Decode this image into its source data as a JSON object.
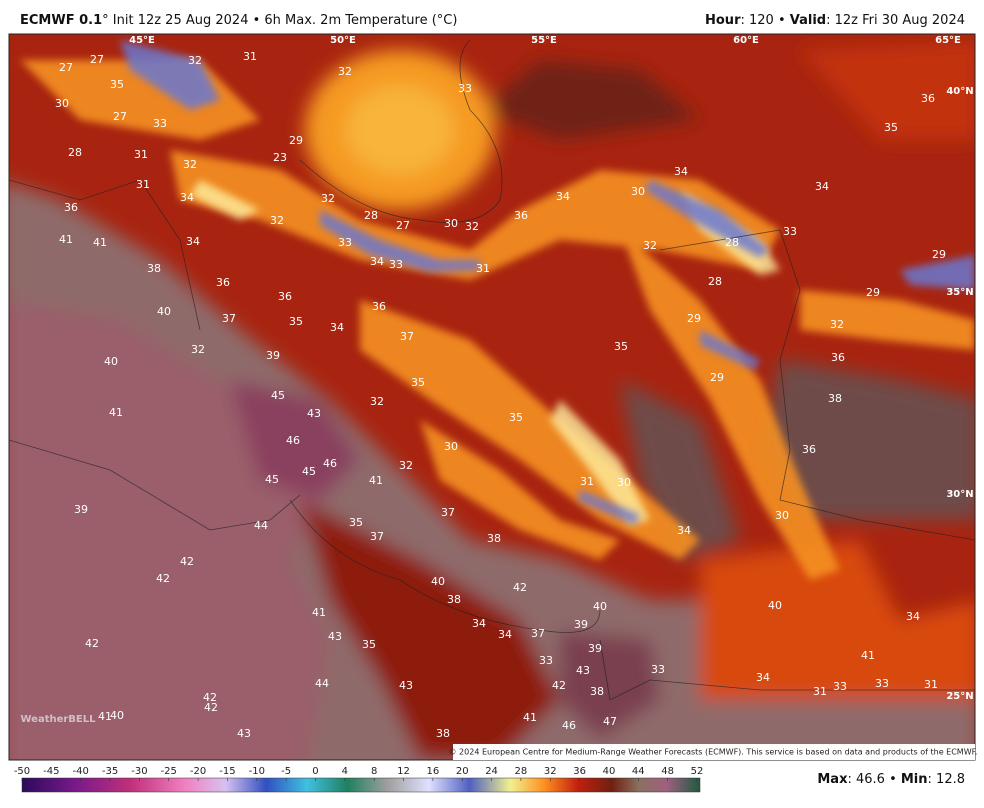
{
  "header": {
    "model": "ECMWF 0.1",
    "details": "° Init 12z 25 Aug 2024 • 6h Max. 2m Temperature (°C)",
    "hour_label": "Hour",
    "hour_value": ": 120 • ",
    "valid_label": "Valid",
    "valid_value": ": 12z Fri 30 Aug 2024"
  },
  "map": {
    "longitude_labels": [
      "45°E",
      "50°E",
      "55°E",
      "60°E",
      "65°E"
    ],
    "latitude_labels": [
      "40°N",
      "35°N",
      "30°N",
      "25°N"
    ],
    "temperature_labels": [
      27,
      27,
      35,
      32,
      31,
      32,
      33,
      36,
      35,
      30,
      27,
      33,
      28,
      31,
      32,
      23,
      29,
      31,
      34,
      32,
      36,
      34,
      34,
      34,
      30,
      36,
      28,
      27,
      30,
      32,
      32,
      41,
      41,
      34,
      33,
      32,
      28,
      33,
      29,
      34,
      33,
      31,
      38,
      28,
      36,
      36,
      29,
      36,
      35,
      37,
      34,
      40,
      32,
      29,
      37,
      32,
      39,
      35,
      36,
      40,
      29,
      35,
      45,
      43,
      32,
      41,
      38,
      35,
      46,
      30,
      36,
      46,
      45,
      45,
      41,
      32,
      31,
      30,
      39,
      37,
      30,
      34,
      44,
      35,
      37,
      38,
      42,
      42,
      40,
      42,
      38,
      40,
      40,
      34,
      41,
      34,
      34,
      37,
      39,
      39,
      43,
      35,
      42,
      33,
      43,
      33,
      41,
      34,
      33,
      33,
      31,
      31,
      44,
      43,
      42,
      38,
      42,
      42,
      41,
      40,
      43,
      41,
      46,
      47,
      38
    ]
  },
  "colorbar": {
    "ticks": [
      -50,
      -45,
      -40,
      -35,
      -30,
      -25,
      -20,
      -15,
      -10,
      -5,
      0,
      4,
      8,
      12,
      16,
      20,
      24,
      28,
      32,
      36,
      40,
      44,
      48,
      52
    ]
  },
  "footer": {
    "max_label": "Max",
    "max_value": ": 46.6 • ",
    "min_label": "Min",
    "min_value": ": 12.8",
    "credit": "© 2024 European Centre for Medium-Range Weather Forecasts (ECMWF). This service is based on data and products of the ECMWF.",
    "logo": "WeatherBELL"
  }
}
